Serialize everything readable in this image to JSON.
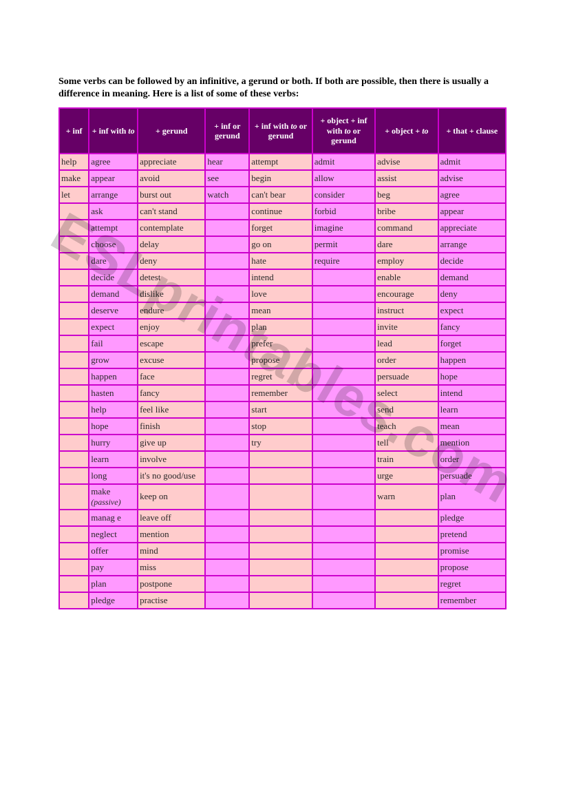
{
  "intro": "Some verbs can be followed by an infinitive, a gerund or both.  If both are possible, then there is usually a difference in meaning.  Here is a list of some of these verbs:",
  "watermark": "ESLprintables.com",
  "table": {
    "background_color": "#cc00cc",
    "header_bg": "#660066",
    "header_fg": "#ffffff",
    "cell_bg_a": "#ffcccc",
    "cell_bg_b": "#ff99ff",
    "cell_fg": "#282828",
    "col_widths_pct": [
      6,
      10,
      14,
      9,
      13,
      13,
      13,
      14
    ],
    "headers": [
      {
        "text": "+ inf"
      },
      {
        "text": "+ inf with ",
        "ital": "to"
      },
      {
        "text": "+ gerund"
      },
      {
        "text": "+ inf or gerund"
      },
      {
        "text": "+ inf with ",
        "ital": "to",
        "text2": " or gerund"
      },
      {
        "text": "+ object + inf with ",
        "ital": "to",
        "text2": " or gerund"
      },
      {
        "text": "+ object + ",
        "ital": "to"
      },
      {
        "text": "+ that + clause"
      }
    ],
    "alt_cols": [
      false,
      true,
      false,
      true,
      false,
      true,
      false,
      true
    ],
    "rows": [
      [
        "help",
        "agree",
        "appreciate",
        "hear",
        "attempt",
        "admit",
        "advise",
        "admit"
      ],
      [
        "make",
        "appear",
        "avoid",
        "see",
        "begin",
        "allow",
        "assist",
        "advise"
      ],
      [
        "let",
        "arrange",
        "burst out",
        "watch",
        "can't bear",
        "consider",
        "beg",
        "agree"
      ],
      [
        "",
        "ask",
        "can't stand",
        "",
        "continue",
        "forbid",
        "bribe",
        "appear"
      ],
      [
        "",
        "attempt",
        "contemplate",
        "",
        "forget",
        "imagine",
        "command",
        "appreciate"
      ],
      [
        "",
        "choose",
        "delay",
        "",
        "go on",
        "permit",
        "dare",
        "arrange"
      ],
      [
        "",
        "dare",
        "deny",
        "",
        "hate",
        "require",
        "employ",
        "decide"
      ],
      [
        "",
        "decide",
        "detest",
        "",
        "intend",
        "",
        "enable",
        "demand"
      ],
      [
        "",
        "demand",
        "dislike",
        "",
        "love",
        "",
        "encourage",
        "deny"
      ],
      [
        "",
        "deserve",
        "endure",
        "",
        "mean",
        "",
        "instruct",
        "expect"
      ],
      [
        "",
        "expect",
        "enjoy",
        "",
        "plan",
        "",
        "invite",
        "fancy"
      ],
      [
        "",
        "fail",
        "escape",
        "",
        "prefer",
        "",
        "lead",
        "forget"
      ],
      [
        "",
        "grow",
        "excuse",
        "",
        "propose",
        "",
        "order",
        "happen"
      ],
      [
        "",
        "happen",
        "face",
        "",
        "regret",
        "",
        "persuade",
        "hope"
      ],
      [
        "",
        "hasten",
        "fancy",
        "",
        "remember",
        "",
        "select",
        "intend"
      ],
      [
        "",
        "help",
        "feel like",
        "",
        "start",
        "",
        "send",
        "learn"
      ],
      [
        "",
        "hope",
        "finish",
        "",
        "stop",
        "",
        "teach",
        "mean"
      ],
      [
        "",
        "hurry",
        "give up",
        "",
        "try",
        "",
        "tell",
        "mention"
      ],
      [
        "",
        "learn",
        "involve",
        "",
        "",
        "",
        "train",
        "order"
      ],
      [
        "",
        "long",
        "it's no good/use",
        "",
        "",
        "",
        "urge",
        "persuade"
      ],
      [
        "",
        "make |ital:(passive)",
        "keep on",
        "",
        "",
        "",
        "warn",
        "plan"
      ],
      [
        "",
        "manag e",
        "leave off",
        "",
        "",
        "",
        "",
        "pledge"
      ],
      [
        "",
        "neglect",
        "mention",
        "",
        "",
        "",
        "",
        "pretend"
      ],
      [
        "",
        "offer",
        "mind",
        "",
        "",
        "",
        "",
        "promise"
      ],
      [
        "",
        "pay",
        "miss",
        "",
        "",
        "",
        "",
        "propose"
      ],
      [
        "",
        "plan",
        "postpone",
        "",
        "",
        "",
        "",
        "regret"
      ],
      [
        "",
        "pledge",
        "practise",
        "",
        "",
        "",
        "",
        "remember"
      ]
    ]
  }
}
